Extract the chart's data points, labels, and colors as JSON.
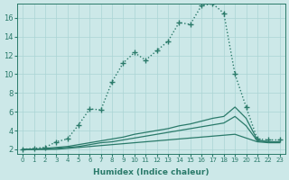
{
  "xlabel": "Humidex (Indice chaleur)",
  "bg_color": "#cce8e8",
  "line_color": "#2a7a6a",
  "grid_color": "#aad4d4",
  "xlim": [
    -0.5,
    23.5
  ],
  "ylim": [
    1.5,
    17.5
  ],
  "xticks": [
    0,
    1,
    2,
    3,
    4,
    5,
    6,
    7,
    8,
    9,
    10,
    11,
    12,
    13,
    14,
    15,
    16,
    17,
    18,
    19,
    20,
    21,
    22,
    23
  ],
  "yticks": [
    2,
    4,
    6,
    8,
    10,
    12,
    14,
    16
  ],
  "curve1_x": [
    0,
    1,
    2,
    3,
    4,
    5,
    6,
    7,
    8,
    9,
    10,
    11,
    12,
    13,
    14,
    15,
    16,
    17,
    18,
    19,
    20,
    21,
    22,
    23
  ],
  "curve1_y": [
    2.0,
    2.1,
    2.2,
    2.8,
    3.1,
    4.6,
    6.3,
    6.2,
    9.2,
    11.2,
    12.3,
    11.5,
    12.5,
    13.5,
    15.5,
    15.3,
    17.3,
    17.5,
    16.5,
    10.0,
    6.5,
    3.1,
    3.0,
    3.0
  ],
  "curve2_x": [
    0,
    1,
    2,
    3,
    4,
    5,
    6,
    7,
    8,
    9,
    10,
    11,
    12,
    13,
    14,
    15,
    16,
    17,
    18,
    19,
    20,
    21,
    22,
    23
  ],
  "curve2_y": [
    2.0,
    2.0,
    2.1,
    2.2,
    2.3,
    2.5,
    2.7,
    2.9,
    3.1,
    3.3,
    3.6,
    3.8,
    4.0,
    4.2,
    4.5,
    4.7,
    5.0,
    5.3,
    5.5,
    6.5,
    5.3,
    3.0,
    2.8,
    2.8
  ],
  "curve3_x": [
    0,
    1,
    2,
    3,
    4,
    5,
    6,
    7,
    8,
    9,
    10,
    11,
    12,
    13,
    14,
    15,
    16,
    17,
    18,
    19,
    20,
    21,
    22,
    23
  ],
  "curve3_y": [
    2.0,
    2.0,
    2.0,
    2.1,
    2.2,
    2.3,
    2.5,
    2.7,
    2.8,
    3.0,
    3.2,
    3.4,
    3.6,
    3.8,
    4.0,
    4.2,
    4.4,
    4.6,
    4.8,
    5.5,
    4.5,
    2.9,
    2.8,
    2.8
  ],
  "curve4_x": [
    0,
    1,
    2,
    3,
    4,
    5,
    6,
    7,
    8,
    9,
    10,
    11,
    12,
    13,
    14,
    15,
    16,
    17,
    18,
    19,
    20,
    21,
    22,
    23
  ],
  "curve4_y": [
    2.0,
    2.0,
    2.0,
    2.0,
    2.1,
    2.2,
    2.3,
    2.4,
    2.5,
    2.6,
    2.7,
    2.8,
    2.9,
    3.0,
    3.1,
    3.2,
    3.3,
    3.4,
    3.5,
    3.6,
    3.2,
    2.8,
    2.7,
    2.7
  ]
}
